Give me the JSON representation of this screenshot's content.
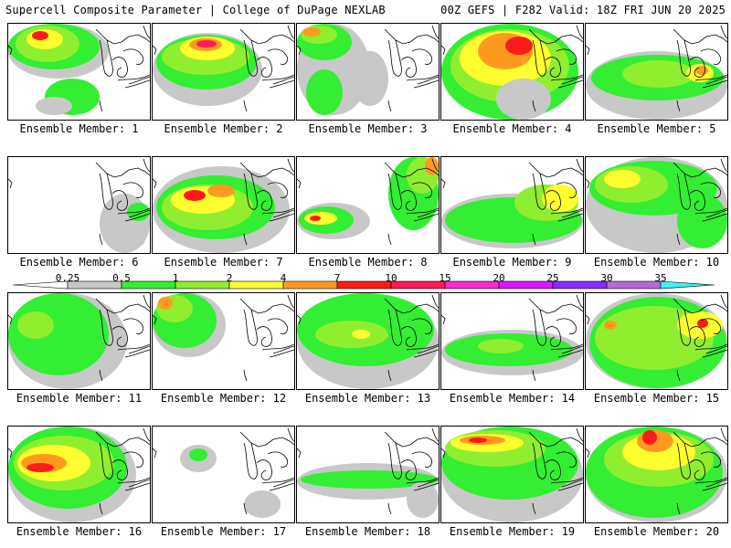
{
  "header": {
    "left": "Supercell Composite Parameter | College of DuPage NEXLAB",
    "right": "00Z GEFS | F282 Valid: 18Z FRI JUN 20 2025"
  },
  "caption_prefix": "Ensemble Member: ",
  "colorbar": {
    "labels": [
      "0.25",
      "0.5",
      "1",
      "2",
      "4",
      "7",
      "10",
      "15",
      "20",
      "25",
      "30",
      "35"
    ],
    "colors": [
      "#c8c8c8",
      "#33ee33",
      "#90ee30",
      "#ffff30",
      "#ff9a20",
      "#ff1a1a",
      "#ff1a5a",
      "#ff2ad0",
      "#d61aff",
      "#8a2aff",
      "#b56ad8",
      "#40f0f0"
    ]
  },
  "members": [
    {
      "id": "1",
      "intensity": "strong"
    },
    {
      "id": "2",
      "intensity": "strong"
    },
    {
      "id": "3",
      "intensity": "moderate"
    },
    {
      "id": "4",
      "intensity": "strong"
    },
    {
      "id": "5",
      "intensity": "moderate"
    },
    {
      "id": "6",
      "intensity": "weak"
    },
    {
      "id": "7",
      "intensity": "strong"
    },
    {
      "id": "8",
      "intensity": "moderate"
    },
    {
      "id": "9",
      "intensity": "moderate"
    },
    {
      "id": "10",
      "intensity": "moderate"
    },
    {
      "id": "11",
      "intensity": "moderate"
    },
    {
      "id": "12",
      "intensity": "moderate"
    },
    {
      "id": "13",
      "intensity": "moderate"
    },
    {
      "id": "14",
      "intensity": "weak"
    },
    {
      "id": "15",
      "intensity": "strong"
    },
    {
      "id": "16",
      "intensity": "strong"
    },
    {
      "id": "17",
      "intensity": "weak"
    },
    {
      "id": "18",
      "intensity": "weak"
    },
    {
      "id": "19",
      "intensity": "strong"
    },
    {
      "id": "20",
      "intensity": "strong"
    }
  ]
}
